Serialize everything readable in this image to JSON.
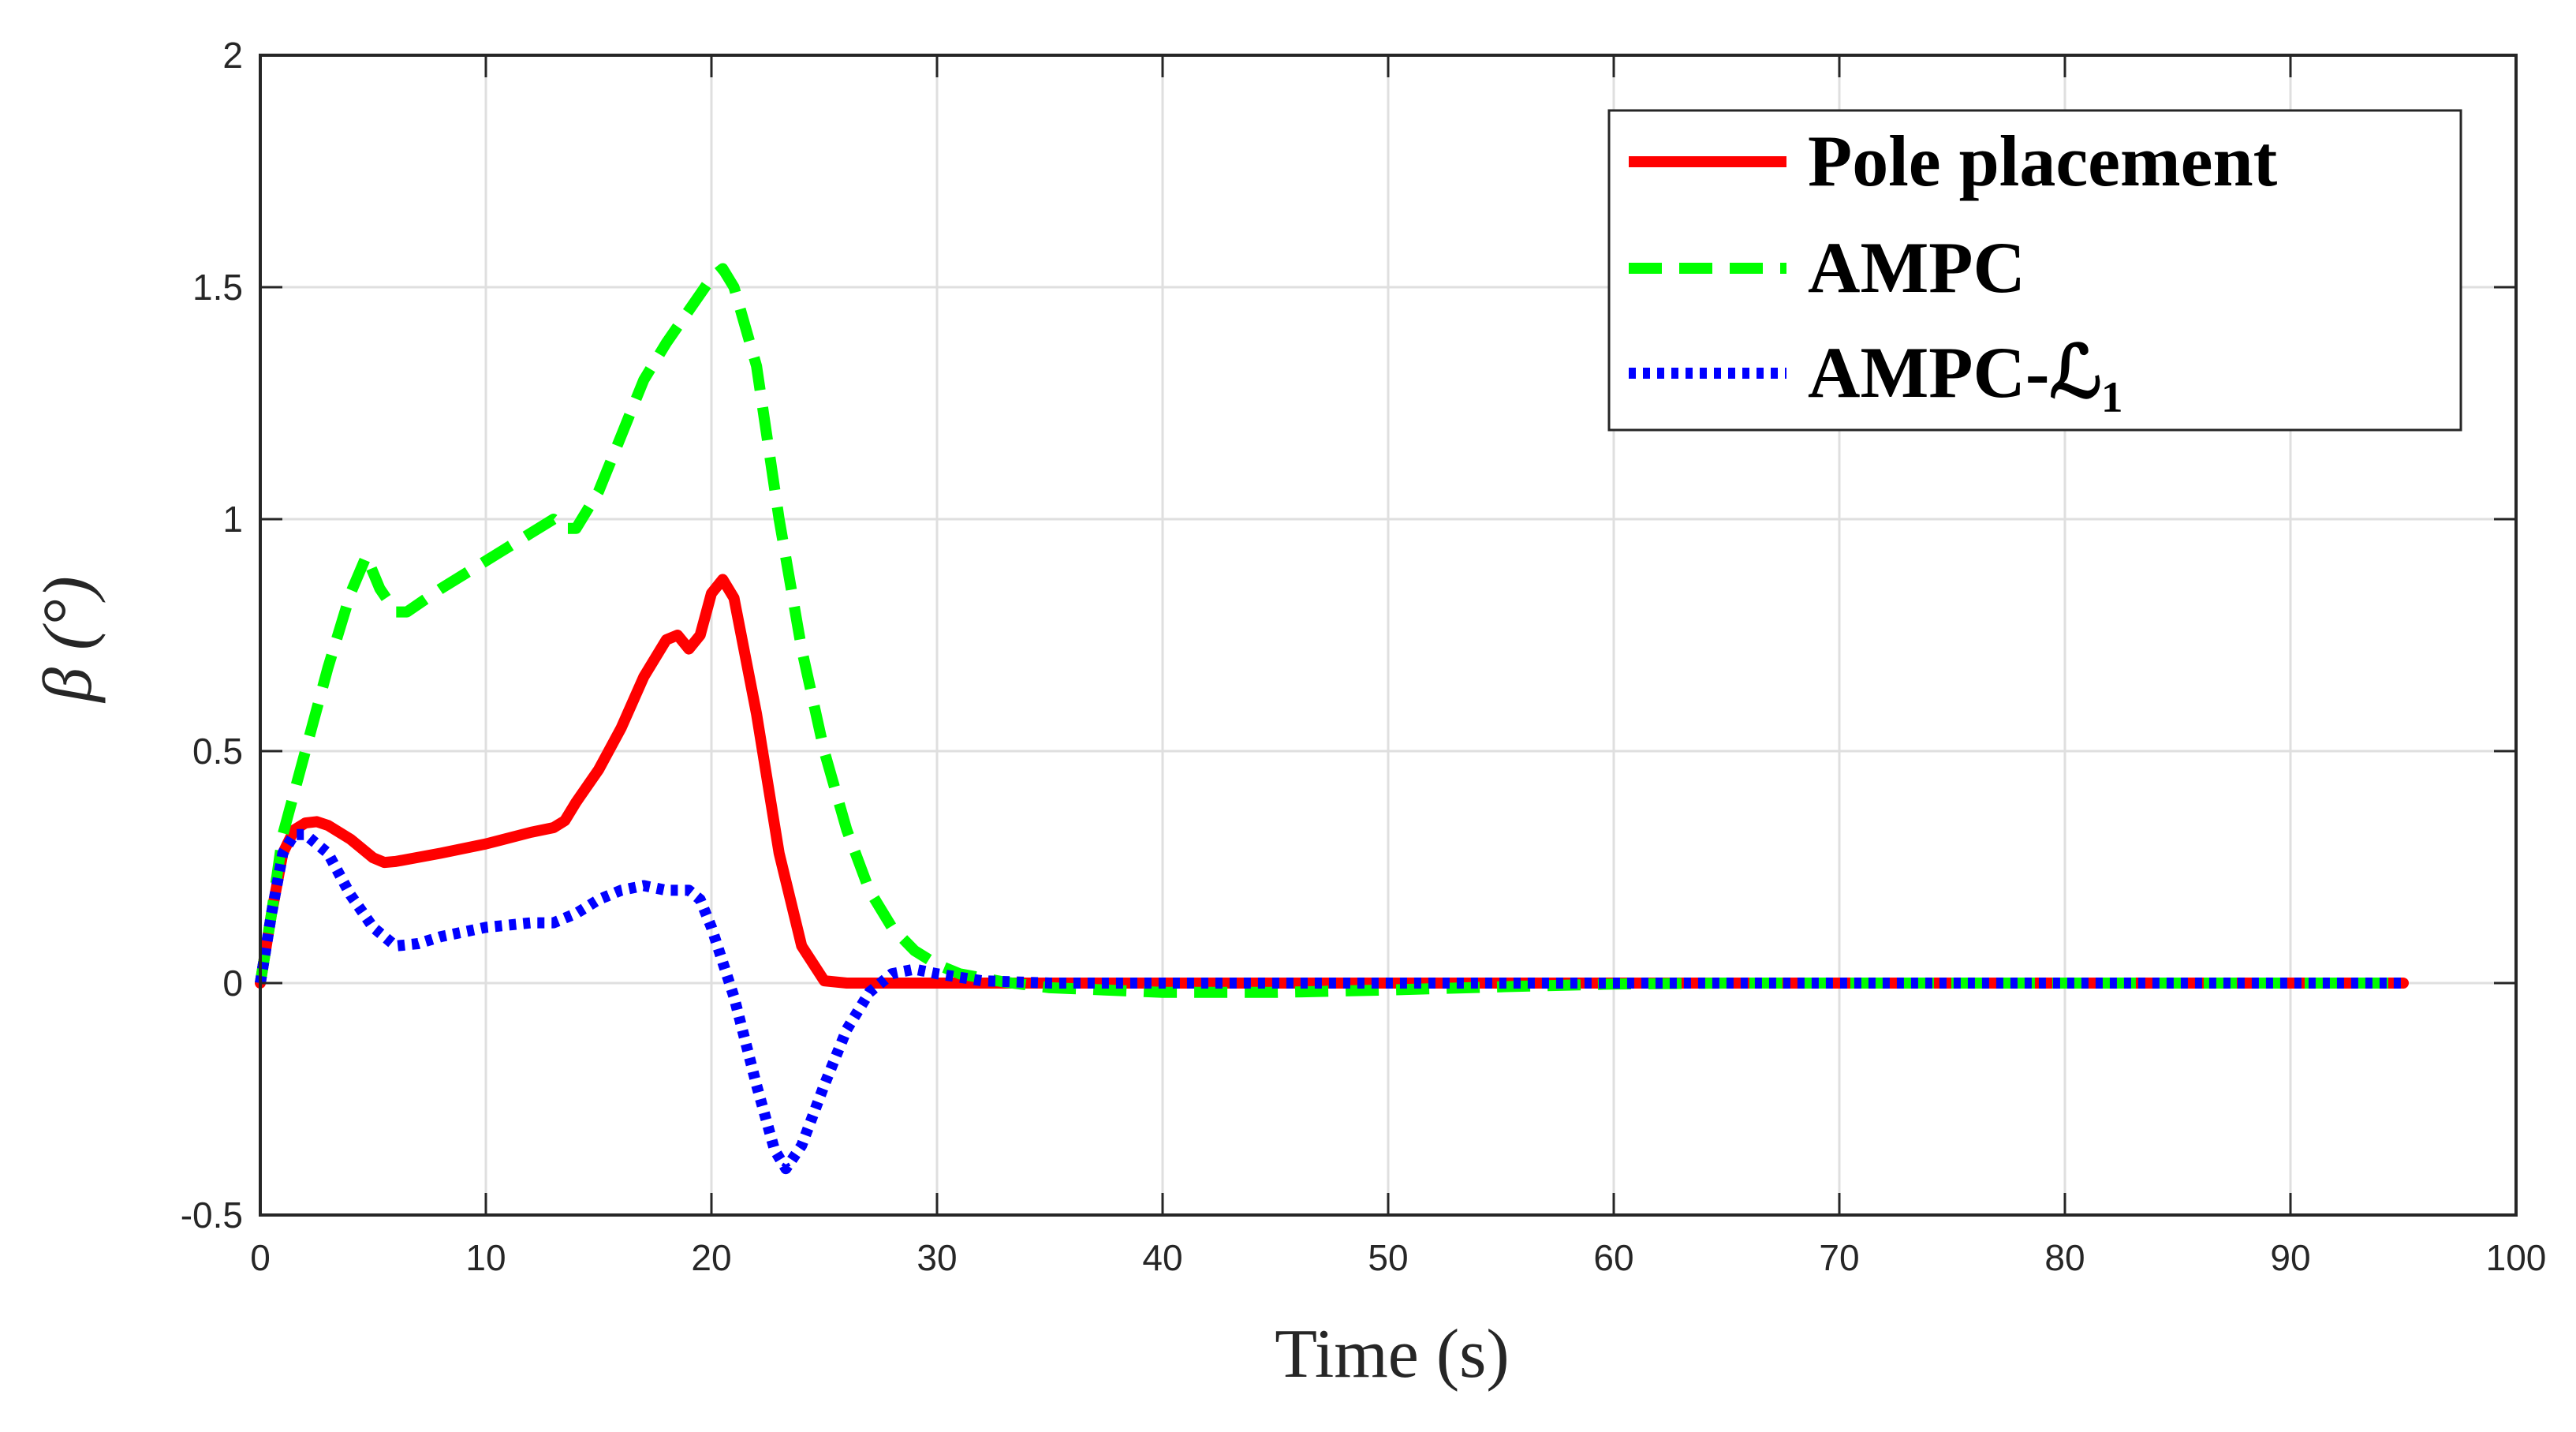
{
  "chart_data": {
    "type": "line",
    "xlabel": "Time (s)",
    "ylabel": "β (°)",
    "xlim": [
      0,
      100
    ],
    "ylim": [
      -0.5,
      2
    ],
    "xticks": [
      0,
      10,
      20,
      30,
      40,
      50,
      60,
      70,
      80,
      90,
      100
    ],
    "yticks": [
      -0.5,
      0,
      0.5,
      1,
      1.5,
      2
    ],
    "xtick_labels": [
      "0",
      "10",
      "20",
      "30",
      "40",
      "50",
      "60",
      "70",
      "80",
      "90",
      "100"
    ],
    "ytick_labels": [
      "-0.5",
      "0",
      "0.5",
      "1",
      "1.5",
      "2"
    ],
    "grid": true,
    "legend_position": "top-right",
    "series": [
      {
        "name": "Pole placement",
        "color": "#ff0000",
        "style": "solid",
        "points": [
          [
            0,
            0
          ],
          [
            0.5,
            0.15
          ],
          [
            1,
            0.28
          ],
          [
            1.5,
            0.33
          ],
          [
            2,
            0.345
          ],
          [
            2.5,
            0.348
          ],
          [
            3,
            0.34
          ],
          [
            4,
            0.31
          ],
          [
            5,
            0.27
          ],
          [
            5.5,
            0.26
          ],
          [
            6,
            0.262
          ],
          [
            8,
            0.28
          ],
          [
            10,
            0.3
          ],
          [
            12,
            0.325
          ],
          [
            13,
            0.335
          ],
          [
            13.5,
            0.35
          ],
          [
            14,
            0.39
          ],
          [
            15,
            0.46
          ],
          [
            16,
            0.55
          ],
          [
            17,
            0.66
          ],
          [
            18,
            0.74
          ],
          [
            18.5,
            0.75
          ],
          [
            19,
            0.72
          ],
          [
            19.5,
            0.75
          ],
          [
            20,
            0.84
          ],
          [
            20.5,
            0.87
          ],
          [
            21,
            0.83
          ],
          [
            22,
            0.58
          ],
          [
            23,
            0.28
          ],
          [
            24,
            0.08
          ],
          [
            25,
            0.005
          ],
          [
            26,
            0
          ],
          [
            30,
            0
          ],
          [
            95,
            0
          ]
        ]
      },
      {
        "name": "AMPC",
        "color": "#00ff00",
        "style": "dashed",
        "points": [
          [
            0,
            0
          ],
          [
            0.5,
            0.15
          ],
          [
            1,
            0.32
          ],
          [
            2,
            0.5
          ],
          [
            3,
            0.68
          ],
          [
            4,
            0.84
          ],
          [
            4.7,
            0.92
          ],
          [
            5.3,
            0.85
          ],
          [
            6,
            0.8
          ],
          [
            6.5,
            0.8
          ],
          [
            8,
            0.85
          ],
          [
            10,
            0.91
          ],
          [
            12,
            0.97
          ],
          [
            13,
            1.0
          ],
          [
            13.5,
            0.98
          ],
          [
            14,
            0.98
          ],
          [
            15,
            1.06
          ],
          [
            16,
            1.18
          ],
          [
            17,
            1.3
          ],
          [
            18,
            1.38
          ],
          [
            19,
            1.45
          ],
          [
            20,
            1.52
          ],
          [
            20.5,
            1.54
          ],
          [
            21,
            1.5
          ],
          [
            22,
            1.33
          ],
          [
            23,
            1.0
          ],
          [
            24,
            0.72
          ],
          [
            25,
            0.5
          ],
          [
            26,
            0.33
          ],
          [
            27,
            0.2
          ],
          [
            28,
            0.12
          ],
          [
            29,
            0.07
          ],
          [
            30,
            0.04
          ],
          [
            31,
            0.02
          ],
          [
            33,
            0.002
          ],
          [
            35,
            -0.01
          ],
          [
            40,
            -0.02
          ],
          [
            45,
            -0.02
          ],
          [
            50,
            -0.015
          ],
          [
            55,
            -0.008
          ],
          [
            60,
            -0.002
          ],
          [
            65,
            0
          ],
          [
            95,
            0
          ]
        ]
      },
      {
        "name": "AMPC-ℒ₁",
        "color": "#0000ff",
        "style": "dotted",
        "points": [
          [
            0,
            0
          ],
          [
            0.5,
            0.15
          ],
          [
            1,
            0.28
          ],
          [
            1.5,
            0.32
          ],
          [
            2,
            0.32
          ],
          [
            3,
            0.28
          ],
          [
            4,
            0.19
          ],
          [
            5,
            0.12
          ],
          [
            6,
            0.08
          ],
          [
            7,
            0.085
          ],
          [
            8,
            0.1
          ],
          [
            10,
            0.12
          ],
          [
            12,
            0.13
          ],
          [
            13,
            0.13
          ],
          [
            14,
            0.15
          ],
          [
            15,
            0.18
          ],
          [
            16,
            0.2
          ],
          [
            17,
            0.21
          ],
          [
            18,
            0.2
          ],
          [
            19,
            0.2
          ],
          [
            19.5,
            0.18
          ],
          [
            20,
            0.12
          ],
          [
            21,
            -0.03
          ],
          [
            22,
            -0.22
          ],
          [
            22.8,
            -0.36
          ],
          [
            23.3,
            -0.4
          ],
          [
            24,
            -0.35
          ],
          [
            25,
            -0.22
          ],
          [
            26,
            -0.1
          ],
          [
            27,
            -0.02
          ],
          [
            28,
            0.02
          ],
          [
            29,
            0.03
          ],
          [
            30,
            0.02
          ],
          [
            32,
            0.005
          ],
          [
            35,
            0
          ],
          [
            95,
            0
          ]
        ]
      }
    ]
  }
}
